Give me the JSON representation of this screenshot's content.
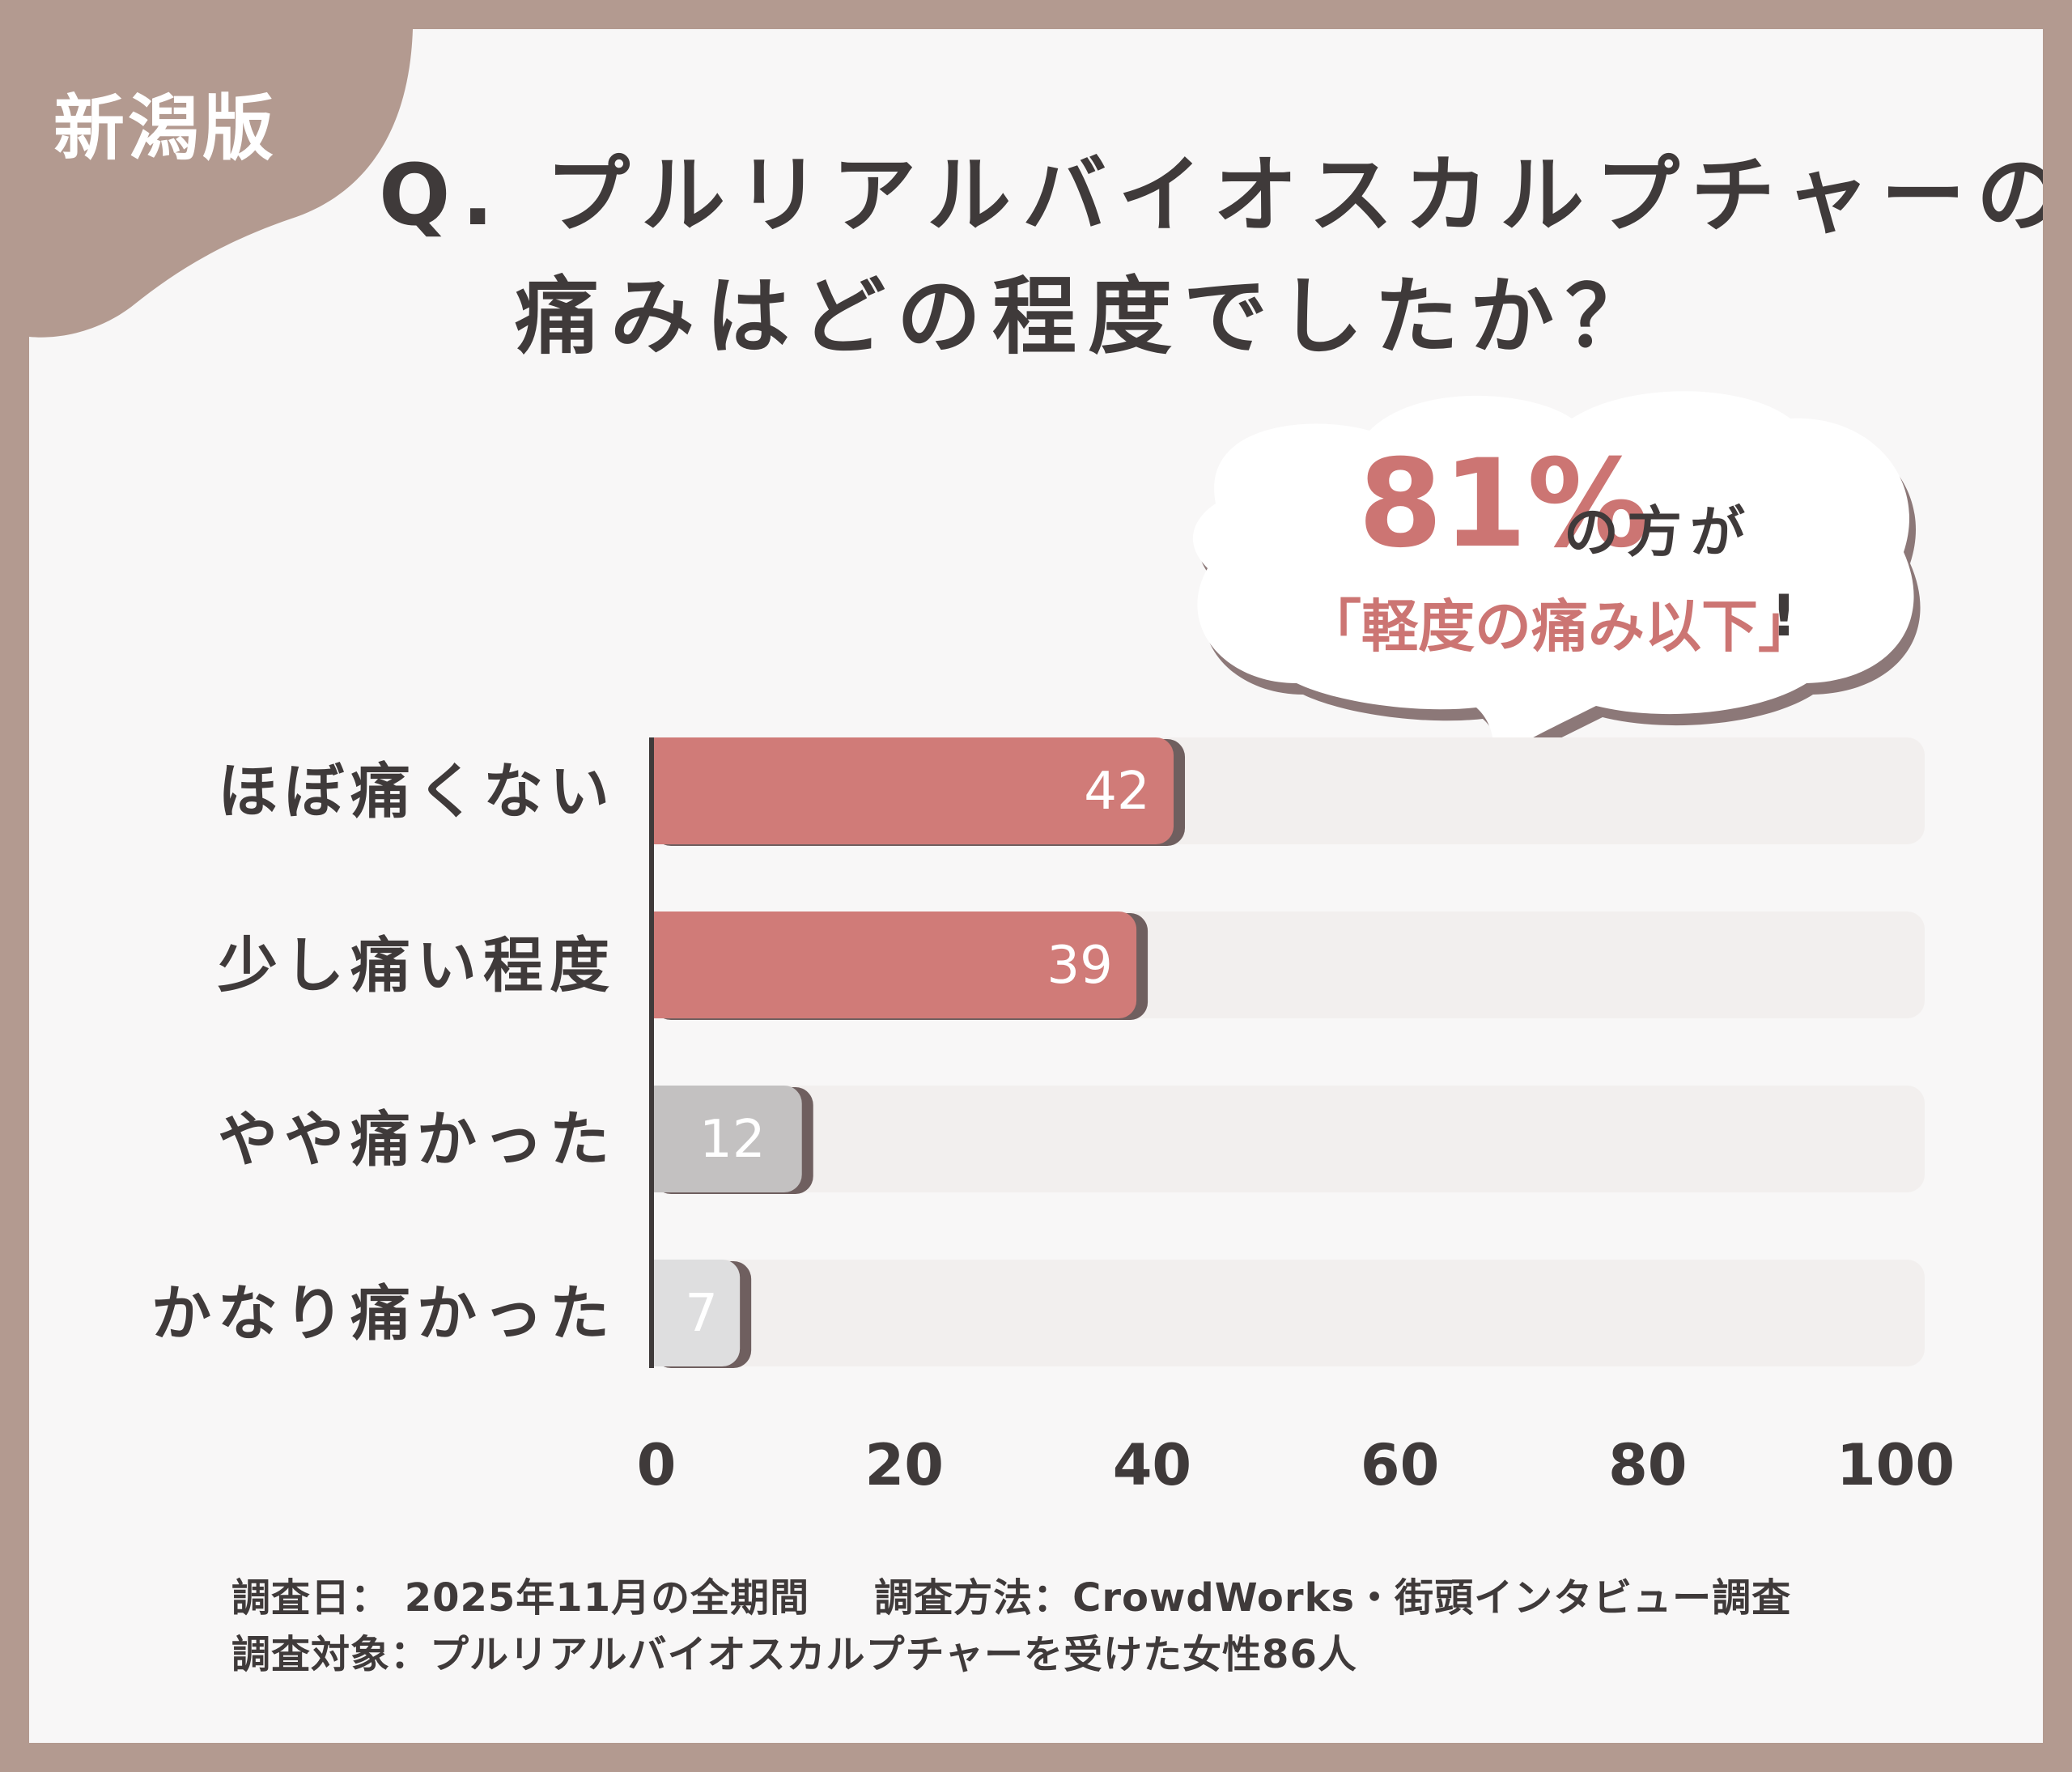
{
  "region_label": "新潟版",
  "title": [
    "Q. プルリアルバイオスカルプチャーの",
    "痛みはどの程度でしたか？"
  ],
  "callout": {
    "percent": "81%",
    "suffix": "の方が",
    "emphasis": "「軽度の痛み以下」",
    "end": "!"
  },
  "chart_data": {
    "type": "bar",
    "orientation": "horizontal",
    "categories": [
      "ほぼ痛くない",
      "少し痛い程度",
      "やや痛かった",
      "かなり痛かった"
    ],
    "values": [
      42,
      39,
      12,
      7
    ],
    "xlim": [
      0,
      100
    ],
    "xticks": [
      "0",
      "20",
      "40",
      "60",
      "80",
      "100"
    ],
    "bar_colors": [
      "#d07b78",
      "#d07b78",
      "#c3c1c1",
      "#dededf"
    ],
    "track_color": "#f2efee",
    "grid": false
  },
  "footer": {
    "date": "調査日： 2025年11月の全期間",
    "method": "調査方法：CrowdWorks・街頭インタビュー調査",
    "target": "調査対象：プルリアルバイオスカルプチャーを受けた女性86人"
  },
  "colors": {
    "frame": "#b39a90",
    "accent": "#cc7573",
    "text": "#3f3a3a"
  }
}
